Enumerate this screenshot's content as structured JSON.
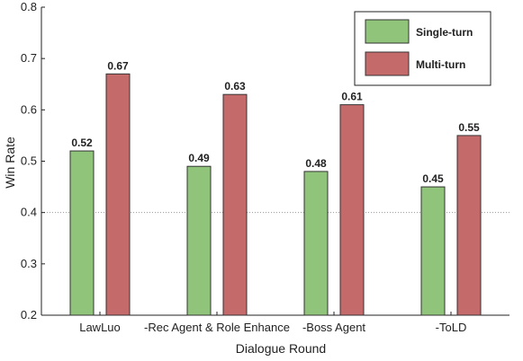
{
  "chart_data": {
    "type": "bar",
    "categories": [
      "LawLuo",
      "-Rec Agent & Role Enhance",
      "-Boss Agent",
      "-ToLD"
    ],
    "series": [
      {
        "name": "Single-turn",
        "values": [
          0.52,
          0.49,
          0.48,
          0.45
        ],
        "color": "#8fc47a"
      },
      {
        "name": "Multi-turn",
        "values": [
          0.67,
          0.63,
          0.61,
          0.55
        ],
        "color": "#c56a6b"
      }
    ],
    "value_labels": [
      [
        "0.52",
        "0.49",
        "0.48",
        "0.45"
      ],
      [
        "0.67",
        "0.63",
        "0.61",
        "0.55"
      ]
    ],
    "title": "",
    "xlabel": "Dialogue Round",
    "ylabel": "Win Rate",
    "ylim": [
      0.2,
      0.8
    ],
    "yticks": [
      "0.2",
      "0.3",
      "0.4",
      "0.5",
      "0.6",
      "0.7",
      "0.8"
    ],
    "reference_line": 0.4,
    "grid": false,
    "legend_position": "top-right"
  }
}
